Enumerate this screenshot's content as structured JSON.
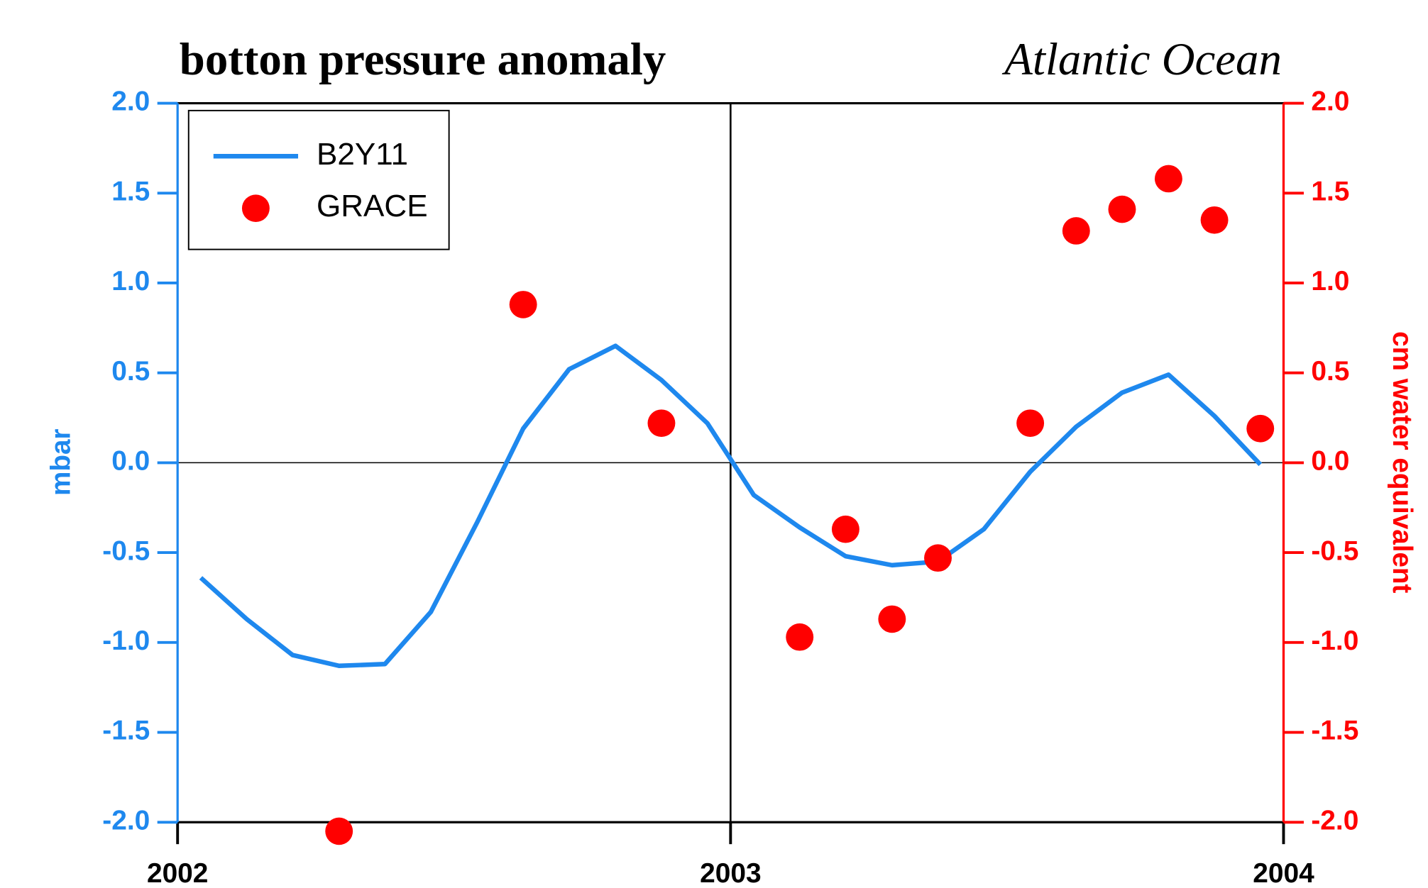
{
  "chart_data": {
    "type": "line",
    "title": "botton pressure anomaly",
    "subtitle": "Atlantic Ocean",
    "ylabel": "mbar",
    "y2label": "cm water equivalent",
    "xlim": [
      2002,
      2004
    ],
    "xticks": [
      2002,
      2003,
      2004
    ],
    "ylim": [
      -2,
      2
    ],
    "yticks": [
      {
        "value": -2,
        "label": "-2.0"
      },
      {
        "value": -1.5,
        "label": "-1.5"
      },
      {
        "value": -1,
        "label": "-1.0"
      },
      {
        "value": -0.5,
        "label": "-0.5"
      },
      {
        "value": 0,
        "label": "0.0"
      },
      {
        "value": 0.5,
        "label": "0.5"
      },
      {
        "value": 1,
        "label": "1.0"
      },
      {
        "value": 1.5,
        "label": "1.5"
      },
      {
        "value": 2,
        "label": "2.0"
      }
    ],
    "y2lim": [
      -2,
      2
    ],
    "y2ticks": [
      {
        "value": -2,
        "label": "-2.0"
      },
      {
        "value": -1.5,
        "label": "-1.5"
      },
      {
        "value": -1,
        "label": "-1.0"
      },
      {
        "value": -0.5,
        "label": "-0.5"
      },
      {
        "value": 0,
        "label": "0.0"
      },
      {
        "value": 0.5,
        "label": "0.5"
      },
      {
        "value": 1,
        "label": "1.0"
      },
      {
        "value": 1.5,
        "label": "1.5"
      },
      {
        "value": 2,
        "label": "2.0"
      }
    ],
    "legend": "upper left",
    "series": [
      {
        "name": "B2Y11",
        "color": "#1e88ee",
        "mode": "line",
        "x": [
          2002.042,
          2002.125,
          2002.208,
          2002.292,
          2002.375,
          2002.458,
          2002.542,
          2002.625,
          2002.708,
          2002.792,
          2002.875,
          2002.958,
          2003.042,
          2003.125,
          2003.208,
          2003.292,
          2003.375,
          2003.458,
          2003.542,
          2003.625,
          2003.708,
          2003.792,
          2003.875,
          2003.958
        ],
        "values": [
          -0.64,
          -0.87,
          -1.07,
          -1.13,
          -1.12,
          -0.83,
          -0.33,
          0.19,
          0.52,
          0.65,
          0.46,
          0.22,
          -0.18,
          -0.36,
          -0.52,
          -0.57,
          -0.55,
          -0.37,
          -0.05,
          0.2,
          0.39,
          0.49,
          0.26,
          -0.01
        ]
      },
      {
        "name": "GRACE",
        "color": "#ff0000",
        "mode": "points",
        "axis": "y2",
        "x": [
          2002.292,
          2002.625,
          2002.875,
          2003.125,
          2003.208,
          2003.292,
          2003.375,
          2003.542,
          2003.625,
          2003.708,
          2003.792,
          2003.875,
          2003.958
        ],
        "values": [
          -2.05,
          0.88,
          0.22,
          -0.97,
          -0.37,
          -0.87,
          -0.53,
          0.22,
          1.29,
          1.41,
          1.58,
          1.35,
          0.19
        ]
      }
    ]
  }
}
